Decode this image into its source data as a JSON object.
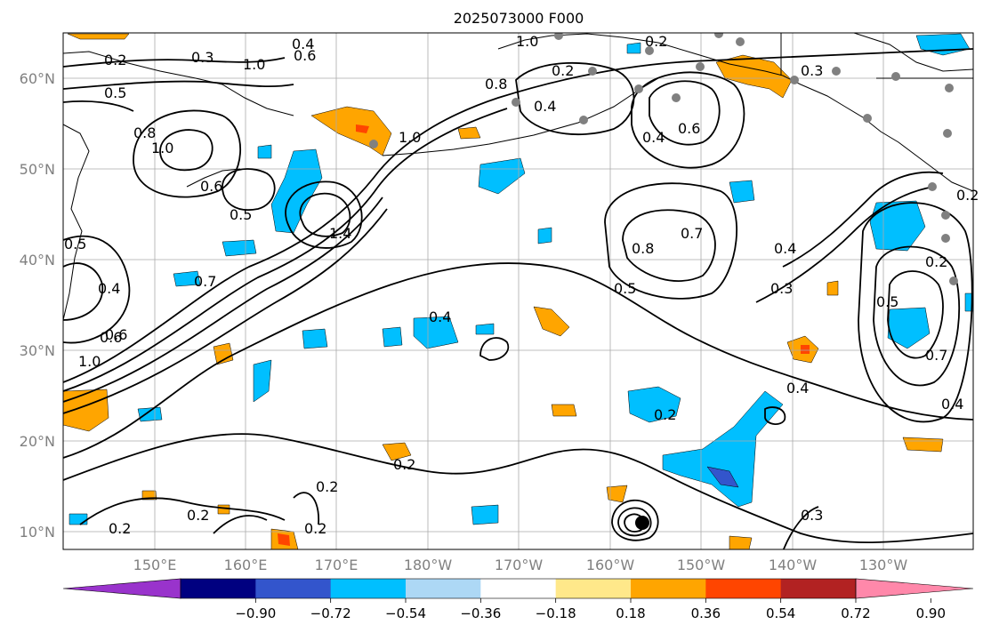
{
  "title": "2025073000 F000",
  "map": {
    "lat_labels": [
      "60°N",
      "50°N",
      "40°N",
      "30°N",
      "20°N",
      "10°N"
    ],
    "lon_labels": [
      "150°E",
      "160°E",
      "170°E",
      "180°W",
      "170°W",
      "160°W",
      "150°W",
      "140°W",
      "130°W"
    ],
    "contour_labels": [
      {
        "text": "0.2"
      },
      {
        "text": "0.3"
      },
      {
        "text": "0.4"
      },
      {
        "text": "0.5"
      },
      {
        "text": "0.6"
      },
      {
        "text": "0.8"
      },
      {
        "text": "1.0"
      },
      {
        "text": "1.0"
      },
      {
        "text": "0.6"
      },
      {
        "text": "0.5"
      },
      {
        "text": "1.4"
      },
      {
        "text": "0.7"
      },
      {
        "text": "0.4"
      },
      {
        "text": "0.6"
      },
      {
        "text": "1.0"
      },
      {
        "text": "0.4"
      },
      {
        "text": "0.2"
      },
      {
        "text": "0.2"
      },
      {
        "text": "0.2"
      },
      {
        "text": "0.2"
      },
      {
        "text": "0.2"
      },
      {
        "text": "0.4"
      },
      {
        "text": "0.3"
      },
      {
        "text": "0.5"
      },
      {
        "text": "0.8"
      },
      {
        "text": "0.7"
      },
      {
        "text": "0.4"
      },
      {
        "text": "0.3"
      },
      {
        "text": "0.4"
      },
      {
        "text": "0.5"
      },
      {
        "text": "0.7"
      },
      {
        "text": "0.4"
      },
      {
        "text": "0.6"
      },
      {
        "text": "0.4"
      },
      {
        "text": "0.8"
      },
      {
        "text": "1.0"
      },
      {
        "text": "0.3"
      },
      {
        "text": "0.2"
      },
      {
        "text": "0.2"
      },
      {
        "text": "1.0"
      },
      {
        "text": "0.2"
      },
      {
        "text": "0.2"
      },
      {
        "text": "0.2"
      },
      {
        "text": "0.6"
      },
      {
        "text": "0.5"
      }
    ]
  },
  "colorbar": {
    "colors": [
      "#9933cc",
      "#000080",
      "#3355cc",
      "#00bfff",
      "#add8f5",
      "#ffffff",
      "#ffe88a",
      "#ffa500",
      "#ff4500",
      "#b22222",
      "#ff88aa"
    ],
    "tick_labels": [
      "−0.90",
      "−0.72",
      "−0.54",
      "−0.36",
      "−0.18",
      "0.18",
      "0.36",
      "0.54",
      "0.72",
      "0.90"
    ]
  }
}
